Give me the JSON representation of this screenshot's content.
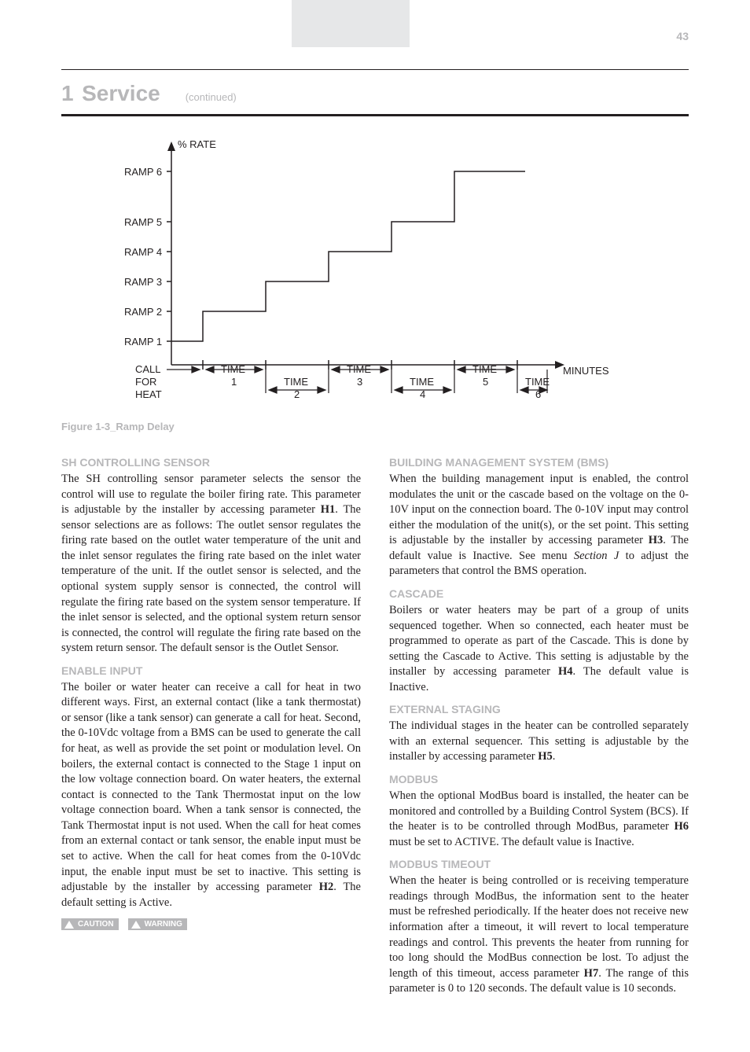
{
  "page": {
    "number": "43",
    "section_number": "1",
    "section_title": "Service",
    "section_subtitle": "(continued)",
    "figure_caption": "Figure 1-3_Ramp Delay"
  },
  "chart": {
    "type": "step",
    "y_axis_label": "% RATE",
    "x_axis_label": "MINUTES",
    "y_ticks": [
      "RAMP 1",
      "RAMP 2",
      "RAMP 3",
      "RAMP 4",
      "RAMP 5",
      "RAMP 6"
    ],
    "x_start_label_lines": [
      "CALL",
      "FOR",
      "HEAT"
    ],
    "x_ticks_top": [
      "TIME 1",
      "TIME 3",
      "TIME 5"
    ],
    "x_ticks_bottom": [
      "TIME 2",
      "TIME 4",
      "TIME 6"
    ],
    "line_color": "#231f20",
    "line_width": 1.5,
    "background_color": "#ffffff"
  },
  "left_column": {
    "h_sensor_title": "SH CONTROLLING SENSOR",
    "h_sensor_text": "The SH controlling sensor parameter selects the sensor the control will use to regulate the boiler firing rate.  This parameter is adjustable by the installer by accessing parameter <b>H1</b>.  The sensor selections are as follows:  The outlet sensor regulates the firing rate based on the outlet water temperature of the unit and the inlet sensor regulates the firing rate based on the inlet water temperature of the unit.  If the outlet sensor is selected, and the optional system supply sensor is connected, the control will regulate the firing rate based on the system sensor temperature.  If the inlet sensor is selected, and the optional system return sensor is connected, the control will regulate the firing rate based on the system return sensor.  The default sensor is the Outlet Sensor.",
    "h_enable_title": "ENABLE INPUT",
    "h_enable_text": "The boiler or water heater can receive a call for heat in two different ways.  First, an external contact (like a tank thermostat) or sensor (like a tank sensor) can generate a call for heat.  Second, the 0-10Vdc voltage from a BMS can be used to generate the call for heat, as well as provide the set point or modulation level.  On boilers, the external contact is connected to the Stage 1 input on the low voltage connection board.  On water heaters, the external contact is connected to the Tank Thermostat input on the low voltage connection board.  When a tank sensor is connected, the Tank Thermostat input is not used.  When the call for heat comes from an external contact or tank sensor, the enable input must be set to active.  When the call for heat comes from the 0-10Vdc input, the enable input must be set to inactive.  This setting is adjustable by the installer by accessing parameter <b>H2</b>.  The default setting is Active.",
    "warn1": "CAUTION",
    "warn2": "WARNING"
  },
  "right_column": {
    "h_bms_title": "BUILDING MANAGEMENT SYSTEM (BMS)",
    "h_bms_text": "When the building management input is enabled, the control modulates the unit or the cascade based on the voltage on the 0-10V input on the connection board.  The 0-10V input may control either the modulation of the unit(s), or the set point.  This setting is adjustable by the installer by accessing parameter <b>H3</b>.  The default value is Inactive.  See menu <i>Section J</i> to adjust the parameters that control the BMS operation.",
    "h_cascade_title": "CASCADE",
    "h_cascade_text": "Boilers or water heaters may be part of a group of units sequenced together.  When so connected, each heater must be programmed to operate as part of the Cascade.  This is done by setting the Cascade to Active.  This setting is adjustable by the installer by accessing parameter <b>H4</b>.  The default value is Inactive.",
    "h_ext_title": "EXTERNAL STAGING",
    "h_ext_text": "The individual stages in the heater can be controlled separately with an external sequencer.  This setting is adjustable by the installer by accessing parameter <b>H5</b>.",
    "h_modbus_title": "MODBUS",
    "h_modbus_text": "When the optional ModBus board is installed, the heater can be monitored and controlled by a Building Control System (BCS).  If the heater is to be controlled through ModBus, parameter <b>H6</b> must be set to ACTIVE.  The default value is Inactive.",
    "h_timeout_title": "MODBUS TIMEOUT",
    "h_timeout_text": "When the heater is being controlled or is receiving temperature readings through ModBus, the information sent to the heater must be refreshed periodically.  If the heater does not receive new information after a timeout, it will revert to local temperature readings and control.  This prevents the heater from running for too long should the ModBus connection be lost.  To adjust the length of this timeout, access parameter <b>H7</b>.  The range of this parameter is 0 to 120 seconds.  The default value is 10 seconds."
  }
}
